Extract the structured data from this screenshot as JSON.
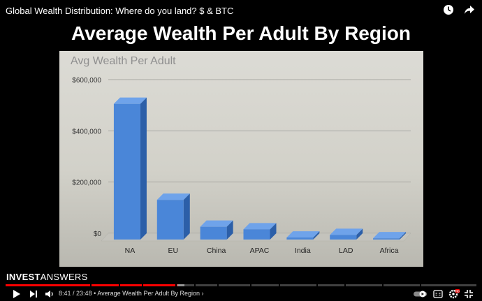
{
  "video": {
    "title": "Global Wealth Distribution: Where do you land? $ & BTC",
    "time_current": "8:41",
    "time_total": "23:48",
    "chapter": "Average Wealth Per Adult By Region",
    "progress": 0.365,
    "buffered": 0.38,
    "icons": [
      "watch-later-icon",
      "share-icon",
      "play-icon",
      "next-icon",
      "volume-icon",
      "autoplay-toggle-icon",
      "subtitles-icon",
      "settings-icon",
      "fullscreen-icon"
    ],
    "accent_color": "#ff0000",
    "settings_badge": "HD"
  },
  "brand": {
    "bold": "INVEST",
    "normal": "ANSWERS"
  },
  "slide": {
    "title": "Average Wealth Per Adult By Region"
  },
  "chart_data": {
    "type": "bar",
    "title": "Avg Wealth Per Adult",
    "categories": [
      "NA",
      "EU",
      "China",
      "APAC",
      "India",
      "LAD",
      "Africa"
    ],
    "values": [
      530000,
      155000,
      50000,
      40000,
      8000,
      18000,
      5000
    ],
    "ylim": [
      0,
      600000
    ],
    "yticks": [
      0,
      200000,
      400000,
      600000
    ],
    "ytick_labels": [
      "$0",
      "$200,000",
      "$400,000",
      "$600,000"
    ],
    "grid": true,
    "bar_color": "#4a86d8"
  }
}
